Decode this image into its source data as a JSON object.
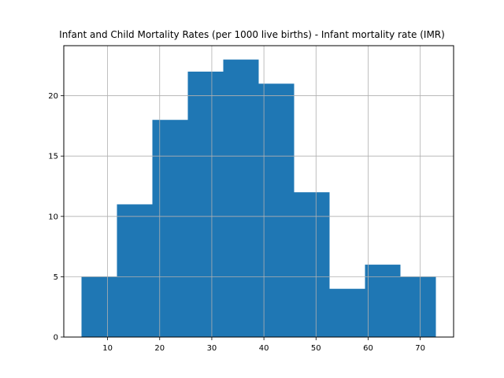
{
  "chart_data": {
    "type": "bar",
    "title": "Infant and Child Mortality Rates (per 1000 live births) - Infant mortality rate (IMR)",
    "xlabel": "",
    "ylabel": "",
    "bins": [
      {
        "start": 5.0,
        "end": 11.8,
        "count": 5
      },
      {
        "start": 11.8,
        "end": 18.6,
        "count": 11
      },
      {
        "start": 18.6,
        "end": 25.4,
        "count": 18
      },
      {
        "start": 25.4,
        "end": 32.2,
        "count": 22
      },
      {
        "start": 32.2,
        "end": 39.0,
        "count": 23
      },
      {
        "start": 39.0,
        "end": 45.8,
        "count": 21
      },
      {
        "start": 45.8,
        "end": 52.6,
        "count": 12
      },
      {
        "start": 52.6,
        "end": 59.4,
        "count": 4
      },
      {
        "start": 59.4,
        "end": 66.2,
        "count": 6
      },
      {
        "start": 66.2,
        "end": 73.0,
        "count": 5
      }
    ],
    "xlim": [
      1.6,
      76.4
    ],
    "ylim": [
      0,
      24.15
    ],
    "xticks": [
      "10",
      "20",
      "30",
      "40",
      "50",
      "60",
      "70"
    ],
    "yticks": [
      "0",
      "5",
      "10",
      "15",
      "20"
    ],
    "grid": true,
    "bar_color": "#1f77b4",
    "grid_color": "#b0b0b0"
  }
}
